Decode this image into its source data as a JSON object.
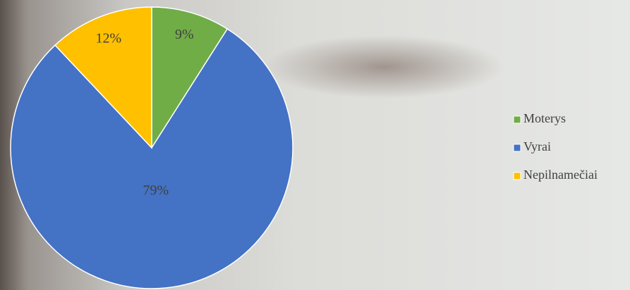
{
  "chart_data": {
    "type": "pie",
    "categories": [
      "Moterys",
      "Vyrai",
      "Nepilnamečiai"
    ],
    "values": [
      9,
      79,
      12
    ],
    "value_labels": [
      "9%",
      "79%",
      "12%"
    ],
    "colors": [
      "#70ad47",
      "#4472c4",
      "#ffc000"
    ],
    "legend": "right"
  }
}
